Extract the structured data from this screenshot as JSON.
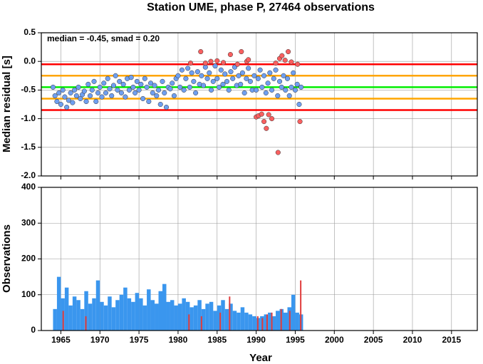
{
  "chart_data": [
    {
      "type": "scatter",
      "title": "Station UME, phase P, 27464 observations",
      "y_label": "Median residual [s]",
      "annotation": "median = -0.45, smad = 0.20",
      "xlim": [
        1962.5,
        2018.3
      ],
      "xticks": [
        1965,
        1970,
        1975,
        1980,
        1985,
        1990,
        1995,
        2000,
        2005,
        2010,
        2015
      ],
      "ylim": [
        -2.0,
        0.5
      ],
      "yticks": [
        {
          "value": -2.0,
          "label": "-2.0"
        },
        -1.5,
        {
          "value": -1.0,
          "label": "-1.0"
        },
        -0.5,
        {
          "value": 0.0,
          "label": "0.0"
        },
        0.5
      ],
      "grid": true,
      "hlines": [
        {
          "value": -0.05,
          "color": "#ff0000"
        },
        {
          "value": -0.25,
          "color": "#ffa500"
        },
        {
          "value": -0.45,
          "color": "#00ee00"
        },
        {
          "value": -0.65,
          "color": "#ffa500"
        },
        {
          "value": -0.85,
          "color": "#ff0000"
        }
      ],
      "series": [
        {
          "color": "#6f9ff0",
          "x": [
            1964,
            1964.25,
            1964.5,
            1964.75,
            1965,
            1965.25,
            1965.5,
            1965.75,
            1966,
            1966.25,
            1966.5,
            1966.75,
            1967,
            1967.25,
            1967.5,
            1967.75,
            1968,
            1968.25,
            1968.5,
            1968.75,
            1969,
            1969.25,
            1969.5,
            1969.75,
            1970,
            1970.25,
            1970.5,
            1970.75,
            1971,
            1971.25,
            1971.5,
            1971.75,
            1972,
            1972.25,
            1972.5,
            1972.75,
            1973,
            1973.25,
            1973.5,
            1973.75,
            1974,
            1974.25,
            1974.5,
            1974.75,
            1975,
            1975.25,
            1975.5,
            1975.75,
            1976,
            1976.25,
            1976.5,
            1976.75,
            1977,
            1977.25,
            1977.5,
            1977.75,
            1978,
            1978.25,
            1978.5,
            1978.75,
            1979,
            1979.25,
            1979.5,
            1979.75,
            1980,
            1980.25,
            1980.5,
            1980.75,
            1981,
            1981.25,
            1981.5,
            1981.75,
            1982,
            1982.25,
            1982.5,
            1982.75,
            1983,
            1983.25,
            1983.5,
            1983.75,
            1984,
            1984.25,
            1984.5,
            1984.75,
            1985,
            1985.25,
            1985.5,
            1985.75,
            1986,
            1986.25,
            1986.5,
            1986.75,
            1987,
            1987.25,
            1987.5,
            1987.75,
            1988,
            1988.25,
            1988.5,
            1988.75,
            1989,
            1989.25,
            1989.5,
            1989.75,
            1990,
            1990.25,
            1990.5,
            1990.75,
            1991,
            1991.25,
            1991.5,
            1991.75,
            1992,
            1992.25,
            1992.5,
            1992.75,
            1993,
            1993.25,
            1993.5,
            1993.75,
            1994,
            1994.25,
            1994.5,
            1994.75,
            1995,
            1995.25,
            1995.5,
            1995.75
          ],
          "values": [
            -0.45,
            -0.6,
            -0.7,
            -0.55,
            -0.75,
            -0.5,
            -0.62,
            -0.8,
            -0.68,
            -0.55,
            -0.72,
            -0.5,
            -0.6,
            -0.45,
            -0.65,
            -0.58,
            -0.52,
            -0.7,
            -0.4,
            -0.6,
            -0.5,
            -0.35,
            -0.7,
            -0.55,
            -0.45,
            -0.62,
            -0.38,
            -0.55,
            -0.3,
            -0.48,
            -0.6,
            -0.42,
            -0.25,
            -0.5,
            -0.35,
            -0.55,
            -0.4,
            -0.62,
            -0.3,
            -0.5,
            -0.28,
            -0.45,
            -0.55,
            -0.35,
            -0.5,
            -0.4,
            -0.65,
            -0.3,
            -0.45,
            -0.7,
            -0.38,
            -0.55,
            -0.42,
            -0.6,
            -0.5,
            -0.75,
            -0.35,
            -0.55,
            -0.8,
            -0.45,
            -0.48,
            -0.38,
            -0.6,
            -0.3,
            -0.25,
            -0.45,
            -0.15,
            -0.5,
            -0.3,
            -0.12,
            -0.45,
            -0.2,
            -0.35,
            -0.55,
            -0.18,
            -0.4,
            -0.25,
            -0.42,
            -0.1,
            -0.3,
            -0.2,
            -0.5,
            -0.35,
            -0.08,
            -0.3,
            -0.45,
            -0.15,
            -0.4,
            -0.22,
            -0.35,
            -0.5,
            -0.18,
            -0.3,
            -0.1,
            -0.42,
            -0.25,
            -0.4,
            -0.2,
            -0.55,
            -0.3,
            -0.12,
            -0.35,
            -0.5,
            -0.25,
            -0.5,
            -0.3,
            -0.15,
            -0.45,
            -0.25,
            -0.55,
            -0.38,
            -0.2,
            -0.5,
            -0.3,
            -0.15,
            -0.6,
            -0.35,
            -0.45,
            -0.25,
            -0.5,
            -0.3,
            -0.6,
            -0.45,
            -0.2,
            -0.5,
            -0.4,
            -0.75,
            -0.45
          ]
        },
        {
          "color": "#f86060",
          "x": [
            1981.6,
            1982.9,
            1983.5,
            1984.2,
            1985.0,
            1985.8,
            1986.7,
            1987.6,
            1988.1,
            1988.8,
            1989.0,
            1990.0,
            1990.3,
            1990.7,
            1991.0,
            1991.3,
            1991.6,
            1992.0,
            1992.5,
            1992.8,
            1993.0,
            1993.3,
            1993.7,
            1994.1,
            1994.5,
            1995.3,
            1995.6
          ],
          "values": [
            -0.03,
            0.17,
            -0.03,
            0.0,
            0.01,
            -0.02,
            0.12,
            -0.05,
            0.17,
            0.0,
            0.03,
            -0.97,
            -0.95,
            -0.92,
            -1.05,
            -1.17,
            -0.93,
            -1.0,
            -0.03,
            -1.59,
            0.05,
            0.1,
            0.02,
            0.17,
            -0.01,
            -0.05,
            -1.05
          ]
        }
      ]
    },
    {
      "type": "bar",
      "x_label": "Year",
      "y_label": "Observations",
      "xlim": [
        1962.5,
        2018.3
      ],
      "xticks": [
        1965,
        1970,
        1975,
        1980,
        1985,
        1990,
        1995,
        2000,
        2005,
        2010,
        2015
      ],
      "ylim": [
        0,
        400
      ],
      "yticks": [
        0,
        100,
        200,
        300,
        400
      ],
      "grid": true,
      "series": [
        {
          "color": "#3a96ee",
          "x": [
            1964,
            1964.5,
            1965,
            1965.5,
            1966,
            1966.5,
            1967,
            1967.5,
            1968,
            1968.5,
            1969,
            1969.5,
            1970,
            1970.5,
            1971,
            1971.5,
            1972,
            1972.5,
            1973,
            1973.5,
            1974,
            1974.5,
            1975,
            1975.5,
            1976,
            1976.5,
            1977,
            1977.5,
            1978,
            1978.5,
            1979,
            1979.5,
            1980,
            1980.5,
            1981,
            1981.5,
            1982,
            1982.5,
            1983,
            1983.5,
            1984,
            1984.5,
            1985,
            1985.5,
            1986,
            1986.5,
            1987,
            1987.5,
            1988,
            1988.5,
            1989,
            1989.5,
            1990,
            1990.5,
            1991,
            1991.5,
            1992,
            1992.5,
            1993,
            1993.5,
            1994,
            1994.5,
            1995,
            1995.5
          ],
          "values": [
            60,
            150,
            90,
            120,
            70,
            95,
            85,
            60,
            110,
            75,
            90,
            140,
            80,
            70,
            95,
            65,
            85,
            100,
            120,
            90,
            80,
            105,
            90,
            70,
            115,
            85,
            75,
            110,
            130,
            80,
            85,
            70,
            75,
            90,
            80,
            65,
            70,
            85,
            60,
            75,
            80,
            55,
            70,
            85,
            60,
            75,
            55,
            50,
            65,
            50,
            45,
            40,
            35,
            40,
            45,
            50,
            40,
            55,
            60,
            50,
            65,
            100,
            50,
            45
          ]
        },
        {
          "color": "#e03c3c",
          "x": [
            1965.3,
            1968.2,
            1981.4,
            1983.0,
            1985.4,
            1986.6,
            1990.2,
            1990.8,
            1991.4,
            1992.0,
            1993.2,
            1994.3,
            1995.7
          ],
          "values": [
            55,
            40,
            45,
            40,
            50,
            95,
            40,
            35,
            45,
            50,
            60,
            55,
            140
          ]
        }
      ]
    }
  ]
}
